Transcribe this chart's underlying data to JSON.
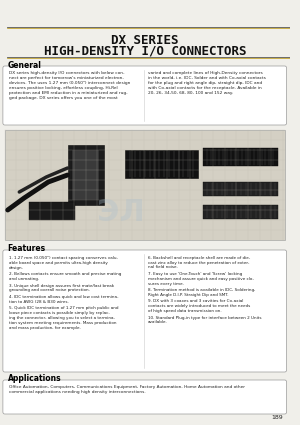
{
  "title_line1": "DX SERIES",
  "title_line2": "HIGH-DENSITY I/O CONNECTORS",
  "bg_color": "#f0efea",
  "section_general_title": "General",
  "general_text_col1": "DX series high-density I/O connectors with below con-\nnect are perfect for tomorrow's miniaturized electron-\ndevices. The uses 1.27 mm (0.050\") interconnect design\nensures positive locking, effortless coupling, Hi-Rel\nprotection and EMI reduction in a miniaturized and rug-\nged package. DX series offers you one of the most",
  "general_text_col2": "varied and complete lines of High-Density connectors\nin the world, i.e. IDC, Solder and with Co-axial contacts\nfor the plug and right angle dip, straight dip, IDC and\nwith Co-axial contacts for the receptacle. Available in\n20, 26, 34,50, 68, 80, 100 and 152 way.",
  "features_title": "Features",
  "features_left": [
    "1.27 mm (0.050\") contact spacing conserves valu-\nable board space and permits ultra-high density\ndesign.",
    "Bellows contacts ensure smooth and precise mating\nand unmating.",
    "Unique shell design assures first mate/last break\ngrounding and overall noise protection.",
    "IDC termination allows quick and low cost termina-\ntion to AWG (28 & B30 wires.",
    "Quick IDC termination of 1.27 mm pitch public and\nloose piece contacts is possible simply by replac-\ning the connector, allowing you to select a termina-\ntion system meeting requirements. Mass production\nand mass production, for example."
  ],
  "features_right": [
    "Backshell and receptacle shell are made of die-\ncast zinc alloy to reduce the penetration of exter-\nnal field noise.",
    "Easy to use 'One-Touch' and 'Screw' locking\nmechanism and assure quick and easy positive clo-\nsures every time.",
    "Termination method is available in IDC, Soldering,\nRight Angle D.I.P. Straight Dip and SMT.",
    "DX with 3 coaxes and 3 cavities for Co-axial\ncontacts are widely introduced to meet the needs\nof high speed data transmission on.",
    "Standard Plug-in type for interface between 2 Units\navailable."
  ],
  "applications_title": "Applications",
  "applications_text": "Office Automation, Computers, Communications Equipment, Factory Automation, Home Automation and other\ncommercial applications needing high density interconnections.",
  "page_number": "189",
  "title_color": "#111111",
  "section_title_color": "#000000",
  "text_color": "#222222",
  "line_color": "#555555",
  "box_border_color": "#999999",
  "header_line_color": "#b8940a",
  "img_bg": "#d4d0c4",
  "img_grid": "#bfbcb0"
}
